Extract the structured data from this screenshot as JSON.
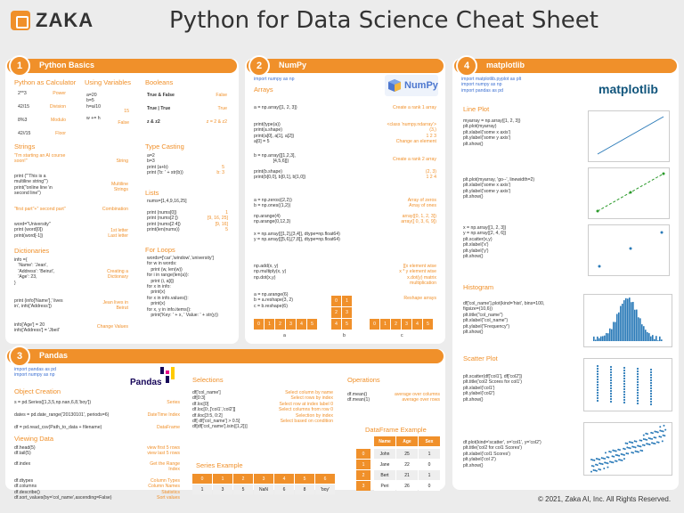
{
  "header": {
    "logo": "ZAKA",
    "title": "Python for Data Science Cheat Sheet"
  },
  "footer": "© 2021, Zaka AI, Inc. All Rights Reserved.",
  "p1": {
    "num": "1",
    "title": "Python Basics",
    "h_calc": "Python as Calculator",
    "h_vars": "Using Variables",
    "h_bool": "Booleans",
    "calc": [
      [
        "2**3",
        "Power"
      ],
      [
        "42/15",
        "Division"
      ],
      [
        "8%3",
        "Modulo"
      ],
      [
        "42//15",
        "Floor"
      ]
    ],
    "vars": "a=20\nb=5\nh=a/10\n\nw += h",
    "vars_r": "15\n\nFalse",
    "bools": [
      [
        "True & False",
        "False"
      ],
      [
        "True | True",
        "True"
      ],
      [
        "z & z2",
        "z = 2 & z2"
      ]
    ],
    "h_str": "Strings",
    "str1": "\"I'm starting an AI course\nsoon!\"",
    "str1r": "String",
    "str2": "print ('''This is a\nmultiline string''')\nprint(\"online line \\n\nsecond line\")",
    "str2r": "Multiline\nStrings",
    "str3": "\"first part\"+\" second part\"",
    "str3r": "Combination",
    "str4": "word=\"University\"\nprint (word[0])\nprint(word[-1])",
    "str4r": "1st letter\nLast letter",
    "h_typ": "Type Casting",
    "typ": "a=2\nb=3\nprint (a+b)\nprint ('b: ' + str(b))",
    "typr": "5\nb: 3",
    "h_list": "Lists",
    "list": "nums=[1,4,9,16,25]\n\nprint (nums[0])\nprint (nums[2:])\nprint (nums[2:4])\nprint(len(nums))",
    "listr": "1\n[9, 16, 25]\n[9, 16]\n5",
    "h_dict": "Dictionaries",
    "dict": "info ={\n   'Name': 'Jean',\n   'Address': 'Beirut',\n   'Age': 23,\n}",
    "dictr": "Creating a\nDictionary",
    "dict2": "print (info['Name'],' lives\nin', info['Address'])",
    "dict2r": "Jean lives in\nBeirut",
    "dict3": "info['Age'] = 20\ninfo['Address'] = 'Jbeil'",
    "dict3r": "Change Values",
    "h_loop": "For Loops",
    "loop": "words=['car','window','university']\nfor w in words:\n   print (w, len(w))\nfor i in range(len(a)):\n   print (i, a[i])\nfor x in info:\n   print(x)\nfor x in info.values():\n   print(x)\nfor x, y in info.items():\n   print('Key: ' + x, ' Value: ' + str(y))"
  },
  "p2": {
    "num": "2",
    "title": "NumPy",
    "import": "import numpy as np",
    "h_arr": "Arrays",
    "logo": "NumPy",
    "a1": "a = np.array([1, 2, 3])",
    "a1r": "Create a rank 1 array",
    "a2": "print(type(a))\nprint(a.shape)\nprint(a[0], a[1], a[2])\na[0] = 5",
    "a2r": "<class 'numpy.ndarray'>\n(3,)\n1 2 3\nChange an element",
    "a3": "b = np.array([[1,2,3],\n               [4,5,6]])",
    "a3r": "Create a rank 2 array",
    "a4": "print(b.shape)\nprint(b[0,0], b[0,1], b[1,0])",
    "a4r": "(2, 3)\n1 2 4",
    "a5": "a = np.zeros((2,2))\nb = np.ones((1,2))",
    "a5r": "Array of zeros\nArray of ones",
    "a6": "np.arange(4)\nnp.arange(0,12,3)",
    "a6r": "array([0, 1, 2, 3])\narray([ 0, 3, 6, 9])",
    "a7": "x = np.array([[1,2],[3,4]], dtype=np.float64)\ny = np.array([[5,6],[7,8]], dtype=np.float64)",
    "a8": "np.add(x, y)\nnp.multiply(x, y)\nnp.dot(x,y)",
    "a8r": "[[x element wise\nx * y element wise\nx.dot(y) matrix\nmultiplication",
    "a9": "a = np.arange(6)\nb = a.reshape(3, 2)\nc = b.reshape(6)",
    "a9r": "Reshape arrays",
    "labels": [
      "a",
      "b",
      "c"
    ],
    "row": [
      "0",
      "1",
      "2",
      "3",
      "4",
      "5"
    ]
  },
  "p3": {
    "num": "3",
    "title": "Pandas",
    "import": "import pandas as pd\nimport numpy as np",
    "logo": "Pandas",
    "h_obj": "Object Creation",
    "o1": "s = pd.Series([1,3,5,np.nan,6,8,'boy'])",
    "o1r": "Series",
    "o2": "dates = pd.date_range('20130101', periods=6)",
    "o2r": "DateTime Index",
    "o3": "df = pd.read_csv(Path_to_data + filename)",
    "o3r": "DataFrame",
    "h_view": "Viewing Data",
    "v1": "df.head(5)\ndf.tail(5)",
    "v1r": "view first 5 rows\nview last 5 rows",
    "v2": "df.index",
    "v2r": "Get the Range\nIndex",
    "v3": "df.dtypes\ndf.columns\ndf.describe()\ndf.sort_values(by='col_name',ascending=False)",
    "v3r": "Column Types\nColumn Names\nStatistics\nSort values",
    "h_sel": "Selections",
    "sel": "df['col_name']\ndf[0:3]\ndf.loc[0]\ndf.loc[0:,['col1','col2']]\ndf.iloc[3:5, 0:2]\ndf[ df['col_name'] > 0.5]\ndf[df['col_name'].isin([1,2])]",
    "selr": "Select column by name\nSelect rows by index\nSelect row at index label 0\nSelect columns from row 0\nSelection by index\nSelect based on condition",
    "h_ops": "Operations",
    "ops": "df.mean()\ndf.mean(1)",
    "opsr": "average over columns\naverage over rows",
    "h_ser": "Series Example",
    "ser_idx": [
      "0",
      "1",
      "2",
      "3",
      "4",
      "5",
      "6"
    ],
    "ser_val": [
      "1",
      "3",
      "5",
      "NaN",
      "6",
      "8",
      "'boy'"
    ],
    "h_df": "DataFrame Example",
    "df_cols": [
      "Name",
      "Age",
      "Sex"
    ],
    "df_rows": [
      [
        "0",
        "John",
        "25",
        "1"
      ],
      [
        "1",
        "Jane",
        "22",
        "0"
      ],
      [
        "2",
        "Bert",
        "21",
        "1"
      ],
      [
        "3",
        "Peri",
        "26",
        "0"
      ]
    ]
  },
  "p4": {
    "num": "4",
    "title": "matplotlib",
    "import": "import matplotlib.pyplot as plt\nimport numpy as np\nimport pandas as pd",
    "logo": "matplotlib",
    "h_line": "Line Plot",
    "l1": "myarray = np.array([1, 2, 3])\nplt.plot(myarray)\nplt.xlabel('some x axis')\nplt.ylabel('some y axis')\nplt.show()",
    "l2": "plt.plot(myarray, 'go--', linewidth=2)\nplt.xlabel('some x axis')\nplt.ylabel('some y axis')\nplt.show()",
    "l3": "x = np.array([1, 2, 3])\ny = np.array([2, 4, 6])\nplt.scatter(x,y)\nplt.xlabel('x')\nplt.ylabel('y')\nplt.show()",
    "h_hist": "Histogram",
    "hist": "df['col_name'].plot(kind='hist', bins=100,\nfigsize=(10,6))\nplt.title(\"col_name\")\nplt.xlabel(\"col_name\")\nplt.ylabel(\"Frequency\")\nplt.show()",
    "h_sc": "Scatter Plot",
    "sc": "plt.scatter(df['col1'], df['col2'])\nplt.title('col2 Scores for col1')\nplt.xlabel('col1')\nplt.ylabel('col2')\nplt.show()",
    "sc2": "df.plot(kind='scatter', x='col1', y='col2')\nplt.title('col2 for col1 Scores')\nplt.xlabel('col1 Scores')\nplt.ylabel('col 2')\nplt.show()"
  }
}
